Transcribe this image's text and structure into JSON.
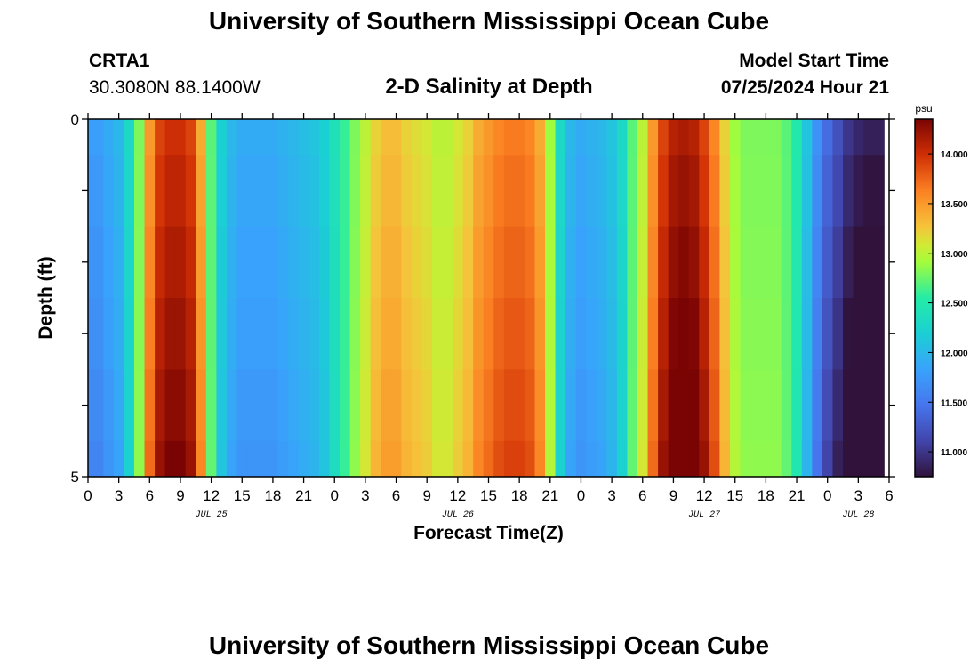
{
  "header": {
    "title": "University of Southern Mississippi Ocean Cube",
    "station_name": "CRTA1",
    "station_coords": "30.3080N  88.1400W",
    "plot_title": "2-D Salinity at Depth",
    "model_label": "Model Start Time",
    "model_time": "07/25/2024 Hour 21"
  },
  "footer": {
    "title": "University of Southern Mississippi Ocean Cube"
  },
  "chart_data": {
    "type": "heatmap",
    "title": "2-D Salinity at Depth",
    "xlabel": "Forecast Time(Z)",
    "ylabel": "Depth (ft)",
    "xlim": [
      0,
      78
    ],
    "ylim": [
      0,
      5
    ],
    "x_tick_values": [
      0,
      3,
      6,
      9,
      12,
      15,
      18,
      21,
      24,
      27,
      30,
      33,
      36,
      39,
      42,
      45,
      48,
      51,
      54,
      57,
      60,
      63,
      66,
      69,
      72,
      75,
      78
    ],
    "x_tick_labels": [
      "0",
      "3",
      "6",
      "9",
      "12",
      "15",
      "18",
      "21",
      "0",
      "3",
      "6",
      "9",
      "12",
      "15",
      "18",
      "21",
      "0",
      "3",
      "6",
      "9",
      "12",
      "15",
      "18",
      "21",
      "0",
      "3",
      "6"
    ],
    "date_labels": [
      {
        "label": "JUL 25",
        "x": 12
      },
      {
        "label": "JUL 26",
        "x": 36
      },
      {
        "label": "JUL 27",
        "x": 60
      },
      {
        "label": "JUL 28",
        "x": 75
      }
    ],
    "y_tick_values": [
      0,
      1,
      2,
      3,
      4,
      5
    ],
    "y_tick_labels": [
      "0",
      "",
      "",
      "",
      "",
      "5"
    ],
    "colorbar": {
      "unit": "psu",
      "min": 10.75,
      "max": 14.35,
      "tick_values": [
        11.0,
        11.5,
        12.0,
        12.5,
        13.0,
        13.5,
        14.0
      ],
      "tick_labels": [
        "11.000",
        "11.500",
        "12.000",
        "12.500",
        "13.000",
        "13.500",
        "14.000"
      ]
    },
    "time_start": 0,
    "time_step": 1,
    "depth_layer_bounds": [
      0,
      0.5,
      1.5,
      2.5,
      3.5,
      4.5,
      5
    ],
    "surface_salinity": [
      11.8,
      11.8,
      11.9,
      12.0,
      12.3,
      12.8,
      13.5,
      13.9,
      14.0,
      14.0,
      13.9,
      13.4,
      12.7,
      12.2,
      12.0,
      11.9,
      11.9,
      11.9,
      11.9,
      11.95,
      12.0,
      12.05,
      12.1,
      12.2,
      12.4,
      12.6,
      12.8,
      13.0,
      13.2,
      13.3,
      13.3,
      13.2,
      13.15,
      13.1,
      13.0,
      13.0,
      13.1,
      13.2,
      13.4,
      13.5,
      13.6,
      13.65,
      13.65,
      13.6,
      13.4,
      12.9,
      12.3,
      12.0,
      11.9,
      11.95,
      12.0,
      12.1,
      12.3,
      12.7,
      13.0,
      13.5,
      13.9,
      14.1,
      14.15,
      14.1,
      13.9,
      13.6,
      13.2,
      12.9,
      12.8,
      12.8,
      12.8,
      12.8,
      12.7,
      12.5,
      12.1,
      11.7,
      11.4,
      11.2,
      11.0,
      10.9,
      10.85,
      10.85
    ]
  }
}
